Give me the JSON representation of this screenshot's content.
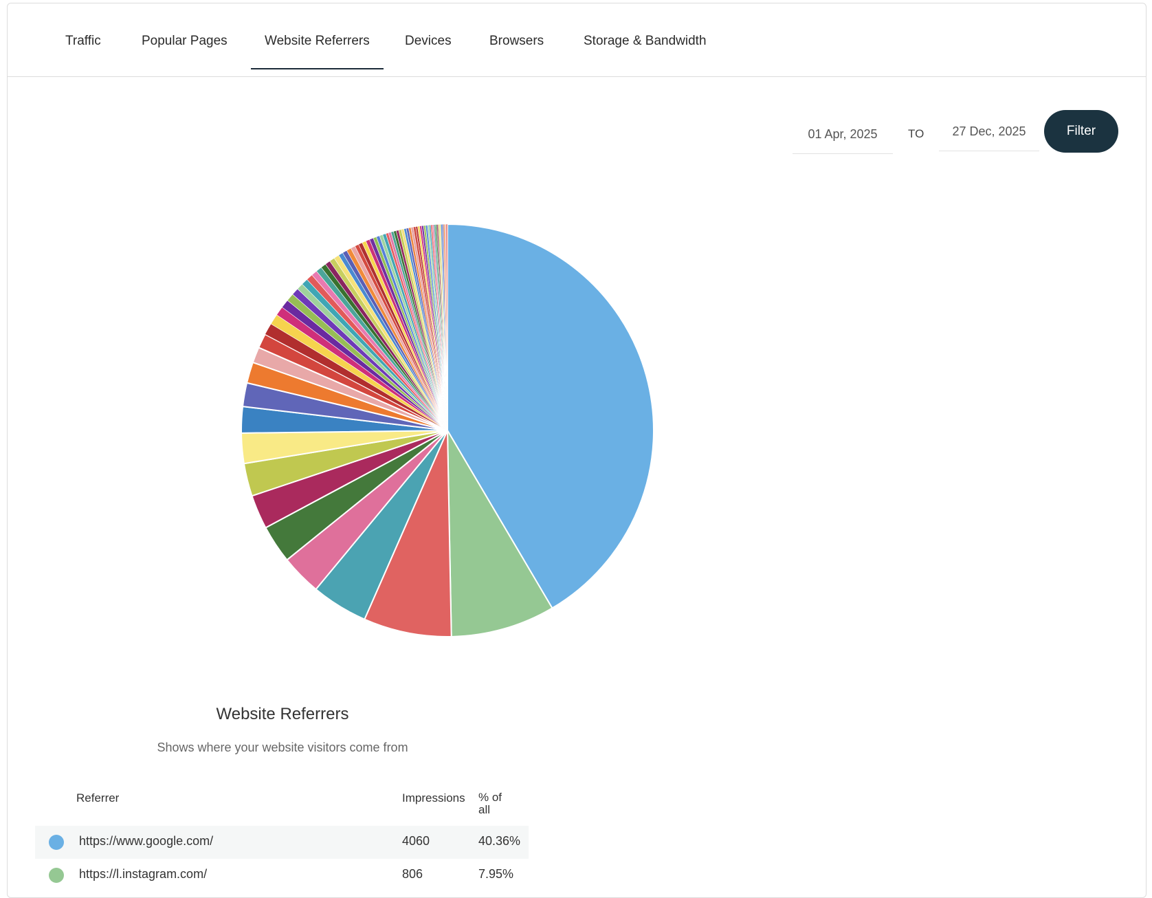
{
  "tabs": [
    {
      "label": "Traffic"
    },
    {
      "label": "Popular Pages"
    },
    {
      "label": "Website Referrers",
      "active": true
    },
    {
      "label": "Devices"
    },
    {
      "label": "Browsers"
    },
    {
      "label": "Storage & Bandwidth"
    }
  ],
  "filter": {
    "from_date": "01 Apr, 2025",
    "to_label": "TO",
    "to_date": "27 Dec, 2025",
    "button_label": "Filter"
  },
  "chart_data": {
    "type": "pie",
    "title": "Website Referrers",
    "subtitle": "Shows where your website visitors come from",
    "slices": [
      {
        "label": "https://www.google.com/",
        "value": 40.36,
        "color": "#6ab0e4"
      },
      {
        "label": "https://l.instagram.com/",
        "value": 7.95,
        "color": "#95c893"
      },
      {
        "value": 6.7,
        "color": "#e06361"
      },
      {
        "value": 4.3,
        "color": "#4ba3b2"
      },
      {
        "value": 3.1,
        "color": "#df709b"
      },
      {
        "value": 2.9,
        "color": "#44793b"
      },
      {
        "value": 2.6,
        "color": "#aa2a5d"
      },
      {
        "value": 2.5,
        "color": "#c0c850"
      },
      {
        "value": 2.3,
        "color": "#f9ea86"
      },
      {
        "value": 2.0,
        "color": "#3a82c2"
      },
      {
        "value": 1.8,
        "color": "#6066b8"
      },
      {
        "value": 1.6,
        "color": "#ed7a2f"
      },
      {
        "value": 1.2,
        "color": "#e8a8a8"
      },
      {
        "value": 1.1,
        "color": "#d3463e"
      },
      {
        "value": 0.9,
        "color": "#b12e2e"
      },
      {
        "value": 0.8,
        "color": "#f6d34e"
      },
      {
        "value": 0.7,
        "color": "#cf2f7a"
      },
      {
        "value": 0.65,
        "color": "#6a2aa0"
      },
      {
        "value": 0.6,
        "color": "#97bd55"
      },
      {
        "value": 0.55,
        "color": "#6e3ab8"
      },
      {
        "value": 0.5,
        "color": "#9fd29c"
      },
      {
        "value": 0.5,
        "color": "#3fa6b5"
      },
      {
        "value": 0.5,
        "color": "#e25a5a"
      },
      {
        "value": 0.45,
        "color": "#e97ab0"
      },
      {
        "value": 0.45,
        "color": "#4ba59a"
      },
      {
        "value": 0.4,
        "color": "#39712f"
      },
      {
        "value": 0.4,
        "color": "#8a2560"
      },
      {
        "value": 0.4,
        "color": "#c8cf5f"
      },
      {
        "value": 0.4,
        "color": "#f5e27a"
      },
      {
        "value": 0.35,
        "color": "#4a8ad0"
      },
      {
        "value": 0.35,
        "color": "#5a5fb5"
      },
      {
        "value": 0.35,
        "color": "#f08a3a"
      },
      {
        "value": 0.35,
        "color": "#eaa6a6"
      },
      {
        "value": 0.3,
        "color": "#d44a40"
      },
      {
        "value": 0.3,
        "color": "#b03030"
      },
      {
        "value": 0.3,
        "color": "#f7d64d"
      },
      {
        "value": 0.3,
        "color": "#cc3377"
      },
      {
        "value": 0.3,
        "color": "#7030a0"
      },
      {
        "value": 0.25,
        "color": "#93c056"
      },
      {
        "value": 0.25,
        "color": "#5580d8"
      },
      {
        "value": 0.25,
        "color": "#a0d4a0"
      },
      {
        "value": 0.25,
        "color": "#43a4b4"
      },
      {
        "value": 0.2,
        "color": "#e56060"
      },
      {
        "value": 0.2,
        "color": "#e078a8"
      },
      {
        "value": 0.2,
        "color": "#4ca394"
      },
      {
        "value": 0.2,
        "color": "#3c7536"
      },
      {
        "value": 0.2,
        "color": "#962a60"
      },
      {
        "value": 0.2,
        "color": "#c3cc58"
      },
      {
        "value": 0.2,
        "color": "#f3e07c"
      },
      {
        "value": 0.18,
        "color": "#4d8cd0"
      },
      {
        "value": 0.18,
        "color": "#6064b8"
      },
      {
        "value": 0.18,
        "color": "#ee8540"
      },
      {
        "value": 0.18,
        "color": "#e5a0a0"
      },
      {
        "value": 0.18,
        "color": "#d04a42"
      },
      {
        "value": 0.15,
        "color": "#b83535"
      },
      {
        "value": 0.15,
        "color": "#f5d855"
      },
      {
        "value": 0.15,
        "color": "#d03a80"
      },
      {
        "value": 0.15,
        "color": "#7535a5"
      },
      {
        "value": 0.15,
        "color": "#98c45a"
      },
      {
        "value": 0.15,
        "color": "#5a88dd"
      },
      {
        "value": 0.12,
        "color": "#a6d6a2"
      },
      {
        "value": 0.12,
        "color": "#48a8b8"
      },
      {
        "value": 0.12,
        "color": "#e86868"
      },
      {
        "value": 0.12,
        "color": "#e383b0"
      },
      {
        "value": 0.12,
        "color": "#52a89a"
      },
      {
        "value": 0.1,
        "color": "#44803c"
      },
      {
        "value": 0.1,
        "color": "#9e3068"
      },
      {
        "value": 0.1,
        "color": "#cad260"
      },
      {
        "value": 0.1,
        "color": "#f1dc80"
      },
      {
        "value": 0.1,
        "color": "#5090d4"
      },
      {
        "value": 0.1,
        "color": "#686ac0"
      },
      {
        "value": 0.1,
        "color": "#f09048"
      },
      {
        "value": 0.1,
        "color": "#e9acac"
      },
      {
        "value": 0.1,
        "color": "#d85048"
      }
    ]
  },
  "table": {
    "headers": {
      "referrer": "Referrer",
      "impressions": "Impressions",
      "percent": "% of all"
    },
    "rows": [
      {
        "referrer": "https://www.google.com/",
        "impressions": "4060",
        "percent": "40.36%",
        "color": "#6ab0e4"
      },
      {
        "referrer": "https://l.instagram.com/",
        "impressions": "806",
        "percent": "7.95%",
        "color": "#95c893"
      }
    ]
  }
}
